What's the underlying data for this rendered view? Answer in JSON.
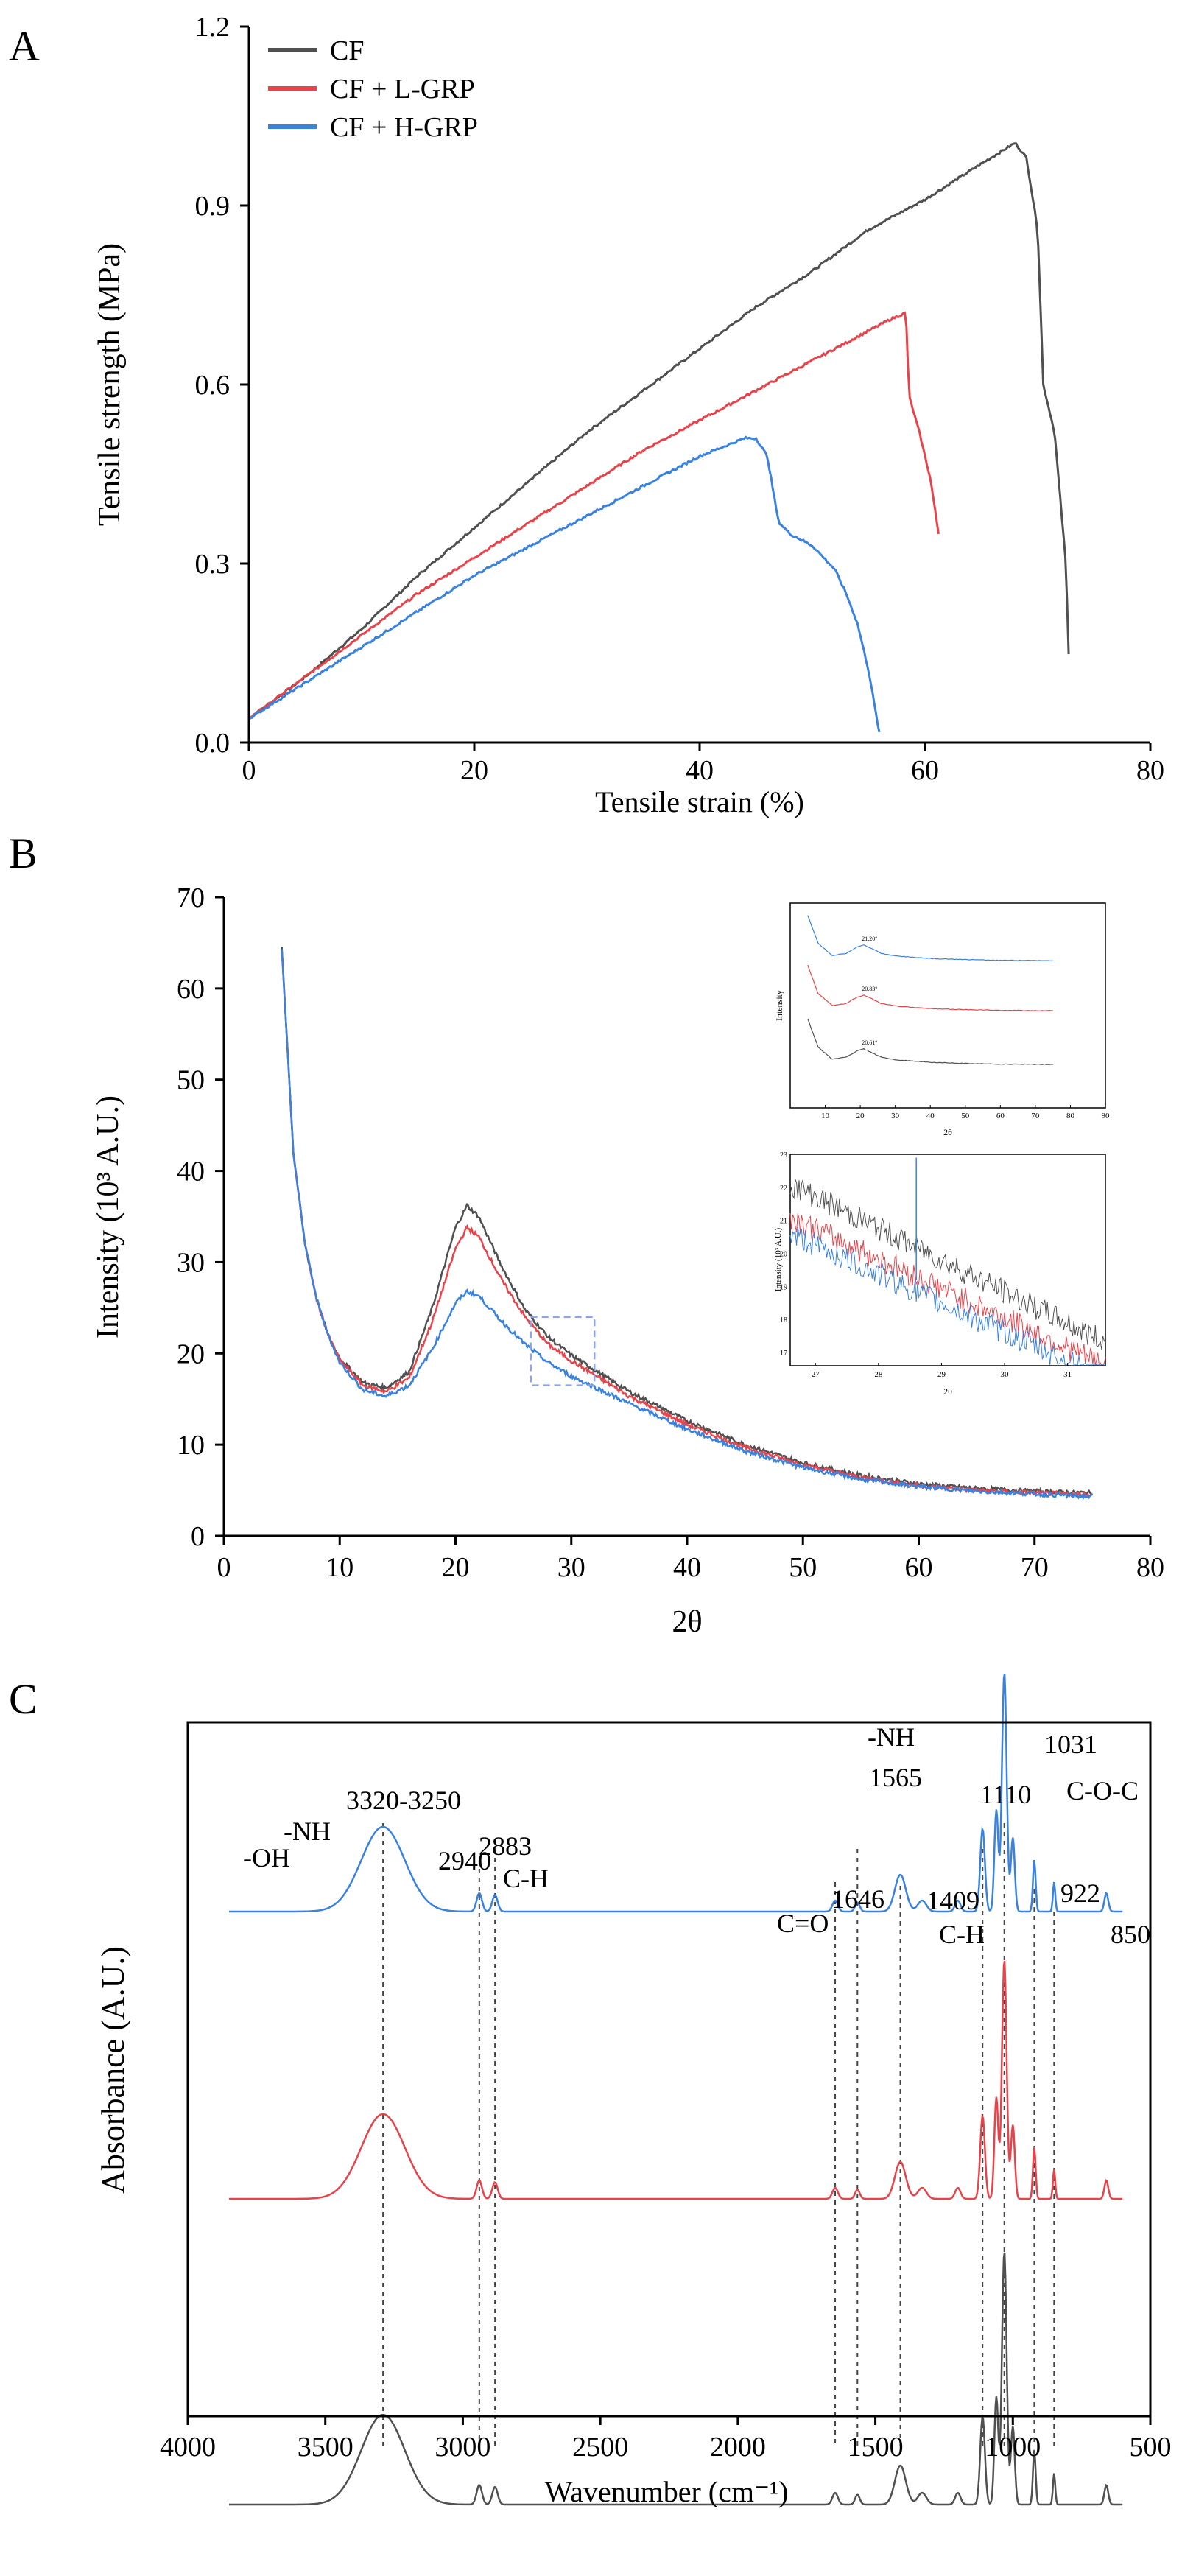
{
  "colors": {
    "cf": "#505050",
    "lgrp": "#e8434a",
    "hgrp": "#3a82e0",
    "axis": "#000000"
  },
  "chart_data": [
    {
      "panel": "A",
      "type": "line",
      "title": "",
      "xlabel": "Tensile strain (%)",
      "ylabel": "Tensile strength (MPa)",
      "xlim": [
        0,
        80
      ],
      "ylim": [
        0,
        1.2
      ],
      "xticks": [
        "0",
        "20",
        "40",
        "60",
        "80"
      ],
      "yticks": [
        "0.0",
        "0.3",
        "0.6",
        "0.9",
        "1.2"
      ],
      "legend": {
        "position": "top-left",
        "entries": [
          "CF",
          "CF + L-GRP",
          "CF + H-GRP"
        ]
      },
      "series": [
        {
          "name": "CF",
          "color_key": "cf",
          "x": [
            0,
            5,
            10,
            15,
            20,
            25,
            30,
            35,
            40,
            45,
            50,
            55,
            60,
            65,
            68,
            69,
            70,
            70.5,
            71.5,
            72.5,
            72.8
          ],
          "y": [
            0.04,
            0.11,
            0.19,
            0.28,
            0.36,
            0.44,
            0.52,
            0.59,
            0.66,
            0.73,
            0.79,
            0.86,
            0.91,
            0.97,
            1.005,
            0.98,
            0.86,
            0.6,
            0.52,
            0.3,
            0.12
          ]
        },
        {
          "name": "CF + L-GRP",
          "color_key": "lgrp",
          "x": [
            0,
            5,
            10,
            15,
            20,
            25,
            30,
            35,
            40,
            45,
            50,
            55,
            57,
            58.3,
            58.6,
            59.5,
            60.5,
            61.2
          ],
          "y": [
            0.04,
            0.11,
            0.18,
            0.25,
            0.31,
            0.37,
            0.43,
            0.49,
            0.54,
            0.59,
            0.64,
            0.69,
            0.71,
            0.72,
            0.58,
            0.52,
            0.44,
            0.35
          ]
        },
        {
          "name": "CF + H-GRP",
          "color_key": "hgrp",
          "x": [
            0,
            5,
            10,
            15,
            20,
            25,
            30,
            35,
            40,
            44,
            45,
            46,
            47,
            48,
            50,
            52,
            53,
            54,
            55,
            56
          ],
          "y": [
            0.04,
            0.1,
            0.16,
            0.22,
            0.28,
            0.33,
            0.38,
            0.43,
            0.48,
            0.51,
            0.51,
            0.48,
            0.37,
            0.35,
            0.33,
            0.29,
            0.25,
            0.2,
            0.12,
            0.01
          ]
        }
      ]
    },
    {
      "panel": "B",
      "type": "line",
      "title": "",
      "xlabel": "2θ",
      "ylabel": "Intensity (10³ A.U.)",
      "xlim": [
        0,
        80
      ],
      "ylim": [
        0,
        70
      ],
      "xticks": [
        "0",
        "10",
        "20",
        "30",
        "40",
        "50",
        "60",
        "70",
        "80"
      ],
      "yticks": [
        "0",
        "10",
        "20",
        "30",
        "40",
        "50",
        "60",
        "70"
      ],
      "zoom_box": {
        "x": [
          26.5,
          32
        ],
        "y": [
          16.5,
          24
        ]
      },
      "series": [
        {
          "name": "CF",
          "color_key": "cf",
          "x": [
            5,
            6,
            7,
            8,
            9,
            10,
            12,
            14,
            16,
            18,
            20,
            21,
            22,
            24,
            26,
            28,
            30,
            35,
            40,
            45,
            50,
            55,
            60,
            65,
            70,
            75
          ],
          "y": [
            64.5,
            42,
            32,
            26,
            22,
            19.5,
            16.8,
            16.2,
            18,
            25,
            33.8,
            36.2,
            35,
            29.5,
            24.8,
            21.8,
            19.8,
            15.8,
            12.6,
            10,
            8,
            6.6,
            5.7,
            5.2,
            4.9,
            4.7
          ]
        },
        {
          "name": "CF + L-GRP",
          "color_key": "lgrp",
          "x": [
            5,
            6,
            7,
            8,
            9,
            10,
            12,
            14,
            16,
            18,
            20,
            21,
            22,
            24,
            26,
            28,
            30,
            35,
            40,
            45,
            50,
            55,
            60,
            65,
            70,
            75
          ],
          "y": [
            64.5,
            42,
            32,
            26,
            22,
            19.3,
            16.5,
            15.8,
            17.3,
            23.5,
            31.5,
            33.8,
            32.8,
            28,
            24,
            21,
            19.2,
            15.3,
            12.2,
            9.7,
            7.8,
            6.4,
            5.5,
            5,
            4.7,
            4.5
          ]
        },
        {
          "name": "CF + H-GRP",
          "color_key": "hgrp",
          "x": [
            5,
            6,
            7,
            8,
            9,
            10,
            12,
            14,
            16,
            18,
            20,
            21,
            22,
            24,
            26,
            28,
            30,
            35,
            40,
            45,
            50,
            55,
            60,
            65,
            70,
            75
          ],
          "y": [
            64.5,
            42,
            32,
            26,
            22,
            19,
            16,
            15.3,
            16.5,
            20.5,
            25.5,
            26.8,
            26.3,
            23.5,
            21,
            19,
            17.5,
            14.5,
            11.7,
            9.3,
            7.5,
            6.2,
            5.4,
            4.9,
            4.6,
            4.3
          ]
        }
      ],
      "insets": [
        {
          "xlabel": "2θ",
          "ylabel": "Intensity",
          "xlim": [
            0,
            90
          ],
          "xticks": [
            "10",
            "20",
            "30",
            "40",
            "50",
            "60",
            "70",
            "80",
            "90"
          ],
          "peak_labels": [
            "21.20°",
            "20.83°",
            "20.61°"
          ],
          "series": [
            {
              "name": "CF + H-GRP",
              "color_key": "hgrp",
              "offset": 2,
              "x": [
                5,
                8,
                12,
                16,
                19,
                21,
                23,
                26,
                30,
                40,
                50,
                60,
                75
              ],
              "y": [
                9,
                3.5,
                1.2,
                1.6,
                2.8,
                3.2,
                2.6,
                1.6,
                1.1,
                0.6,
                0.4,
                0.25,
                0.2
              ]
            },
            {
              "name": "CF + L-GRP",
              "color_key": "lgrp",
              "offset": 1,
              "x": [
                5,
                8,
                12,
                16,
                19,
                21,
                23,
                26,
                30,
                40,
                50,
                60,
                75
              ],
              "y": [
                9,
                3.5,
                1.2,
                1.6,
                2.8,
                3.2,
                2.6,
                1.6,
                1.1,
                0.6,
                0.4,
                0.25,
                0.2
              ]
            },
            {
              "name": "CF",
              "color_key": "cf",
              "offset": 0,
              "x": [
                5,
                8,
                12,
                16,
                19,
                21,
                23,
                26,
                30,
                40,
                50,
                60,
                75
              ],
              "y": [
                9,
                3.5,
                1.2,
                1.6,
                2.8,
                3.2,
                2.6,
                1.6,
                1.1,
                0.6,
                0.4,
                0.25,
                0.2
              ]
            }
          ]
        },
        {
          "xlabel": "2θ",
          "ylabel": "Intensity (10³ A.U.)",
          "xlim": [
            26.6,
            31.6
          ],
          "ylim": [
            16.6,
            23
          ],
          "xticks": [
            "27",
            "28",
            "29",
            "30",
            "31"
          ],
          "yticks": [
            "17",
            "18",
            "19",
            "20",
            "21",
            "22",
            "23"
          ],
          "series": [
            {
              "name": "CF",
              "color_key": "cf",
              "x": [
                26.6,
                31.6
              ],
              "y": [
                22.1,
                17.3
              ]
            },
            {
              "name": "CF + L-GRP",
              "color_key": "lgrp",
              "x": [
                26.6,
                31.6
              ],
              "y": [
                21.1,
                16.6
              ]
            },
            {
              "name": "CF + H-GRP",
              "color_key": "hgrp",
              "x": [
                26.6,
                31.6
              ],
              "y": [
                20.6,
                16.2
              ]
            }
          ],
          "spike_x": 28.6
        }
      ]
    },
    {
      "panel": "C",
      "type": "line",
      "title": "",
      "xlabel": "Wavenumber (cm⁻¹)",
      "ylabel": "Absorbance (A.U.)",
      "xlim": [
        4000,
        500
      ],
      "xticks": [
        "4000",
        "3500",
        "3000",
        "2500",
        "2000",
        "1500",
        "1000",
        "500"
      ],
      "series": [
        {
          "name": "CF + H-GRP",
          "color_key": "hgrp",
          "offset": 2
        },
        {
          "name": "CF + L-GRP",
          "color_key": "lgrp",
          "offset": 1
        },
        {
          "name": "CF",
          "color_key": "cf",
          "offset": 0
        }
      ],
      "reference_lines": [
        3290,
        2940,
        2883,
        1646,
        1565,
        1409,
        1110,
        1031,
        922,
        850
      ],
      "annotations": [
        "-OH",
        "-NH",
        "3320-3250",
        "2940",
        "2883",
        "C-H",
        "C=O",
        "1646",
        "-NH",
        "1565",
        "1409",
        "C-H",
        "1110",
        "1031",
        "C-O-C",
        "922",
        "850"
      ]
    }
  ],
  "panel_letters": {
    "a": "A",
    "b": "B",
    "c": "C"
  }
}
